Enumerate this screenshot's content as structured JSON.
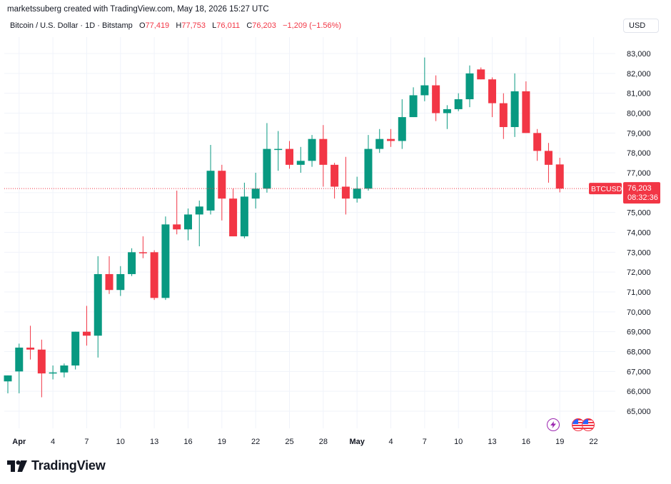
{
  "header": {
    "attribution": "marketssuberg created with TradingView.com, May 18, 2026 15:27 UTC"
  },
  "symbol": {
    "name": "Bitcoin / U.S. Dollar · 1D · Bitstamp",
    "o_label": "O",
    "o_value": "77,419",
    "h_label": "H",
    "h_value": "77,753",
    "l_label": "L",
    "l_value": "76,011",
    "c_label": "C",
    "c_value": "76,203",
    "change": "−1,209 (−1.56%)"
  },
  "currency": "USD",
  "price_tag": {
    "ticker": "BTCUSD",
    "price": "76,203",
    "countdown": "08:32:36"
  },
  "footer": {
    "brand": "TradingView"
  },
  "colors": {
    "up": "#089981",
    "down": "#f23645",
    "grid": "#f0f3fa",
    "text": "#131722"
  },
  "chart_data": {
    "type": "candlestick",
    "y_ticks": [
      "65,000",
      "66,000",
      "67,000",
      "68,000",
      "69,000",
      "70,000",
      "71,000",
      "72,000",
      "73,000",
      "74,000",
      "75,000",
      "76,000",
      "77,000",
      "78,000",
      "79,000",
      "80,000",
      "81,000",
      "82,000",
      "83,000"
    ],
    "ylim": [
      64200,
      83600
    ],
    "x_ticks": [
      "Apr",
      "4",
      "7",
      "10",
      "13",
      "16",
      "19",
      "22",
      "25",
      "28",
      "May",
      "4",
      "7",
      "10",
      "13",
      "16",
      "19",
      "22"
    ],
    "last_price": 76203,
    "candles": [
      {
        "date": "Mar 31",
        "o": 66500,
        "h": 66800,
        "l": 65900,
        "c": 66800
      },
      {
        "date": "Apr 1",
        "o": 67000,
        "h": 68400,
        "l": 65900,
        "c": 68200
      },
      {
        "date": "Apr 2",
        "o": 68200,
        "h": 69300,
        "l": 67600,
        "c": 68100
      },
      {
        "date": "Apr 3",
        "o": 68100,
        "h": 68600,
        "l": 65700,
        "c": 66900
      },
      {
        "date": "Apr 4",
        "o": 66900,
        "h": 67300,
        "l": 66600,
        "c": 66950
      },
      {
        "date": "Apr 5",
        "o": 66950,
        "h": 67400,
        "l": 66700,
        "c": 67300
      },
      {
        "date": "Apr 6",
        "o": 67300,
        "h": 69000,
        "l": 67100,
        "c": 69000
      },
      {
        "date": "Apr 7",
        "o": 69000,
        "h": 70300,
        "l": 68300,
        "c": 68800
      },
      {
        "date": "Apr 8",
        "o": 68800,
        "h": 72800,
        "l": 67700,
        "c": 71900
      },
      {
        "date": "Apr 9",
        "o": 71900,
        "h": 72800,
        "l": 70900,
        "c": 71100
      },
      {
        "date": "Apr 10",
        "o": 71100,
        "h": 72300,
        "l": 70800,
        "c": 71900
      },
      {
        "date": "Apr 11",
        "o": 71900,
        "h": 73200,
        "l": 71800,
        "c": 73000
      },
      {
        "date": "Apr 12",
        "o": 73000,
        "h": 73800,
        "l": 72700,
        "c": 72950
      },
      {
        "date": "Apr 13",
        "o": 73000,
        "h": 73100,
        "l": 70600,
        "c": 70700
      },
      {
        "date": "Apr 14",
        "o": 70700,
        "h": 74800,
        "l": 70600,
        "c": 74400
      },
      {
        "date": "Apr 15",
        "o": 74400,
        "h": 76100,
        "l": 73900,
        "c": 74150
      },
      {
        "date": "Apr 16",
        "o": 74150,
        "h": 75200,
        "l": 73600,
        "c": 74900
      },
      {
        "date": "Apr 17",
        "o": 74900,
        "h": 75600,
        "l": 73300,
        "c": 75300
      },
      {
        "date": "Apr 18",
        "o": 75100,
        "h": 78400,
        "l": 74900,
        "c": 77100
      },
      {
        "date": "Apr 19",
        "o": 77100,
        "h": 77400,
        "l": 74600,
        "c": 75700
      },
      {
        "date": "Apr 20",
        "o": 75700,
        "h": 76200,
        "l": 73800,
        "c": 73800
      },
      {
        "date": "Apr 21",
        "o": 73800,
        "h": 76500,
        "l": 73700,
        "c": 75800
      },
      {
        "date": "Apr 22",
        "o": 75700,
        "h": 77000,
        "l": 75200,
        "c": 76200
      },
      {
        "date": "Apr 23",
        "o": 76200,
        "h": 79500,
        "l": 76000,
        "c": 78200
      },
      {
        "date": "Apr 24",
        "o": 78200,
        "h": 79100,
        "l": 77100,
        "c": 78200
      },
      {
        "date": "Apr 25",
        "o": 78200,
        "h": 78600,
        "l": 77200,
        "c": 77400
      },
      {
        "date": "Apr 26",
        "o": 77400,
        "h": 78300,
        "l": 77000,
        "c": 77600
      },
      {
        "date": "Apr 27",
        "o": 77600,
        "h": 78900,
        "l": 77300,
        "c": 78700
      },
      {
        "date": "Apr 28",
        "o": 78700,
        "h": 79400,
        "l": 76300,
        "c": 77400
      },
      {
        "date": "Apr 29",
        "o": 77400,
        "h": 77500,
        "l": 75700,
        "c": 76300
      },
      {
        "date": "Apr 30",
        "o": 76300,
        "h": 77800,
        "l": 74900,
        "c": 75700
      },
      {
        "date": "May 1",
        "o": 75700,
        "h": 76800,
        "l": 75500,
        "c": 76200
      },
      {
        "date": "May 2",
        "o": 76200,
        "h": 78900,
        "l": 76100,
        "c": 78200
      },
      {
        "date": "May 3",
        "o": 78200,
        "h": 79200,
        "l": 78000,
        "c": 78700
      },
      {
        "date": "May 4",
        "o": 78700,
        "h": 79200,
        "l": 78300,
        "c": 78600
      },
      {
        "date": "May 5",
        "o": 78600,
        "h": 80700,
        "l": 78200,
        "c": 79800
      },
      {
        "date": "May 6",
        "o": 79800,
        "h": 81300,
        "l": 79800,
        "c": 80900
      },
      {
        "date": "May 7",
        "o": 80900,
        "h": 82800,
        "l": 80600,
        "c": 81400
      },
      {
        "date": "May 8",
        "o": 81400,
        "h": 81900,
        "l": 79600,
        "c": 80000
      },
      {
        "date": "May 9",
        "o": 80000,
        "h": 80400,
        "l": 79200,
        "c": 80200
      },
      {
        "date": "May 10",
        "o": 80200,
        "h": 81000,
        "l": 80100,
        "c": 80700
      },
      {
        "date": "May 11",
        "o": 80700,
        "h": 82400,
        "l": 80300,
        "c": 82000
      },
      {
        "date": "May 12",
        "o": 82200,
        "h": 82300,
        "l": 81700,
        "c": 81700
      },
      {
        "date": "May 13",
        "o": 81700,
        "h": 81800,
        "l": 79800,
        "c": 80500
      },
      {
        "date": "May 14",
        "o": 80500,
        "h": 81000,
        "l": 78700,
        "c": 79300
      },
      {
        "date": "May 15",
        "o": 79300,
        "h": 82000,
        "l": 78800,
        "c": 81100
      },
      {
        "date": "May 16",
        "o": 81100,
        "h": 81600,
        "l": 79000,
        "c": 79000
      },
      {
        "date": "May 17",
        "o": 79000,
        "h": 79200,
        "l": 77600,
        "c": 78100
      },
      {
        "date": "May 18",
        "o": 78100,
        "h": 78500,
        "l": 76500,
        "c": 77400
      },
      {
        "date": "May 19",
        "o": 77419,
        "h": 77753,
        "l": 76011,
        "c": 76203
      }
    ]
  }
}
